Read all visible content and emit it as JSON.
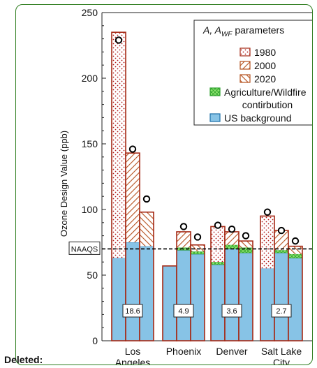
{
  "colors": {
    "panel_border": "#2e7d1f",
    "bar_outline": "#a52a16",
    "us_background": "#87c3e6",
    "us_background_edge": "#1b6ea8",
    "agri_fill": "#8ce36d",
    "agri_edge": "#2ca02c",
    "dot_1980": "#b01a1a",
    "hatch_2000_2020": "#b5501d"
  },
  "revision_note": {
    "label": "Deleted:"
  },
  "chart_data": {
    "type": "bar",
    "ylabel": "Ozone Design Value (ppb)",
    "xlabel": "",
    "ylim": [
      0,
      250
    ],
    "yticks": [
      0,
      50,
      100,
      150,
      200,
      250
    ],
    "categories": [
      {
        "line1": "Los",
        "line2": "Angeles",
        "box_label": "18.6"
      },
      {
        "line1": "Phoenix",
        "line2": "",
        "box_label": "4.9"
      },
      {
        "line1": "Denver",
        "line2": "",
        "box_label": "3.6"
      },
      {
        "line1": "Salt Lake",
        "line2": "City",
        "box_label": "2.7"
      }
    ],
    "bars": [
      {
        "city": 0,
        "year": "1980",
        "background": 63,
        "agri": 0,
        "total": 235,
        "observed": 229
      },
      {
        "city": 0,
        "year": "2000",
        "background": 75,
        "agri": 0,
        "total": 143,
        "observed": 146
      },
      {
        "city": 0,
        "year": "2020",
        "background": 72,
        "agri": 0,
        "total": 98,
        "observed": 108
      },
      {
        "city": 1,
        "year": "1980",
        "background": 57,
        "agri": 0,
        "total": 57,
        "observed": null
      },
      {
        "city": 1,
        "year": "2000",
        "background": 69,
        "agri": 2,
        "total": 83,
        "observed": 87
      },
      {
        "city": 1,
        "year": "2020",
        "background": 66,
        "agri": 2,
        "total": 73,
        "observed": 79
      },
      {
        "city": 2,
        "year": "1980",
        "background": 58,
        "agri": 2,
        "total": 87,
        "observed": 88
      },
      {
        "city": 2,
        "year": "2000",
        "background": 70,
        "agri": 3,
        "total": 83,
        "observed": 85
      },
      {
        "city": 2,
        "year": "2020",
        "background": 67,
        "agri": 4,
        "total": 76,
        "observed": 80
      },
      {
        "city": 3,
        "year": "1980",
        "background": 55,
        "agri": 0,
        "total": 95,
        "observed": 98
      },
      {
        "city": 3,
        "year": "2000",
        "background": 67,
        "agri": 2,
        "total": 84,
        "observed": 84
      },
      {
        "city": 3,
        "year": "2020",
        "background": 63,
        "agri": 3,
        "total": 72,
        "observed": 76
      }
    ],
    "naaqs": {
      "value": 70,
      "label": "NAAQS"
    },
    "legend": {
      "placement": "top-right",
      "title_italic": "A,",
      "title_main": "A",
      "title_sub": "WF",
      "title_rest": " parameters",
      "entries": [
        {
          "key": "1980",
          "label": "1980"
        },
        {
          "key": "2000",
          "label": "2000"
        },
        {
          "key": "2020",
          "label": "2020"
        },
        {
          "key": "agri",
          "label": "Agriculture/Wildfire",
          "label2": "contirbution"
        },
        {
          "key": "bg",
          "label": "US background"
        }
      ]
    }
  }
}
